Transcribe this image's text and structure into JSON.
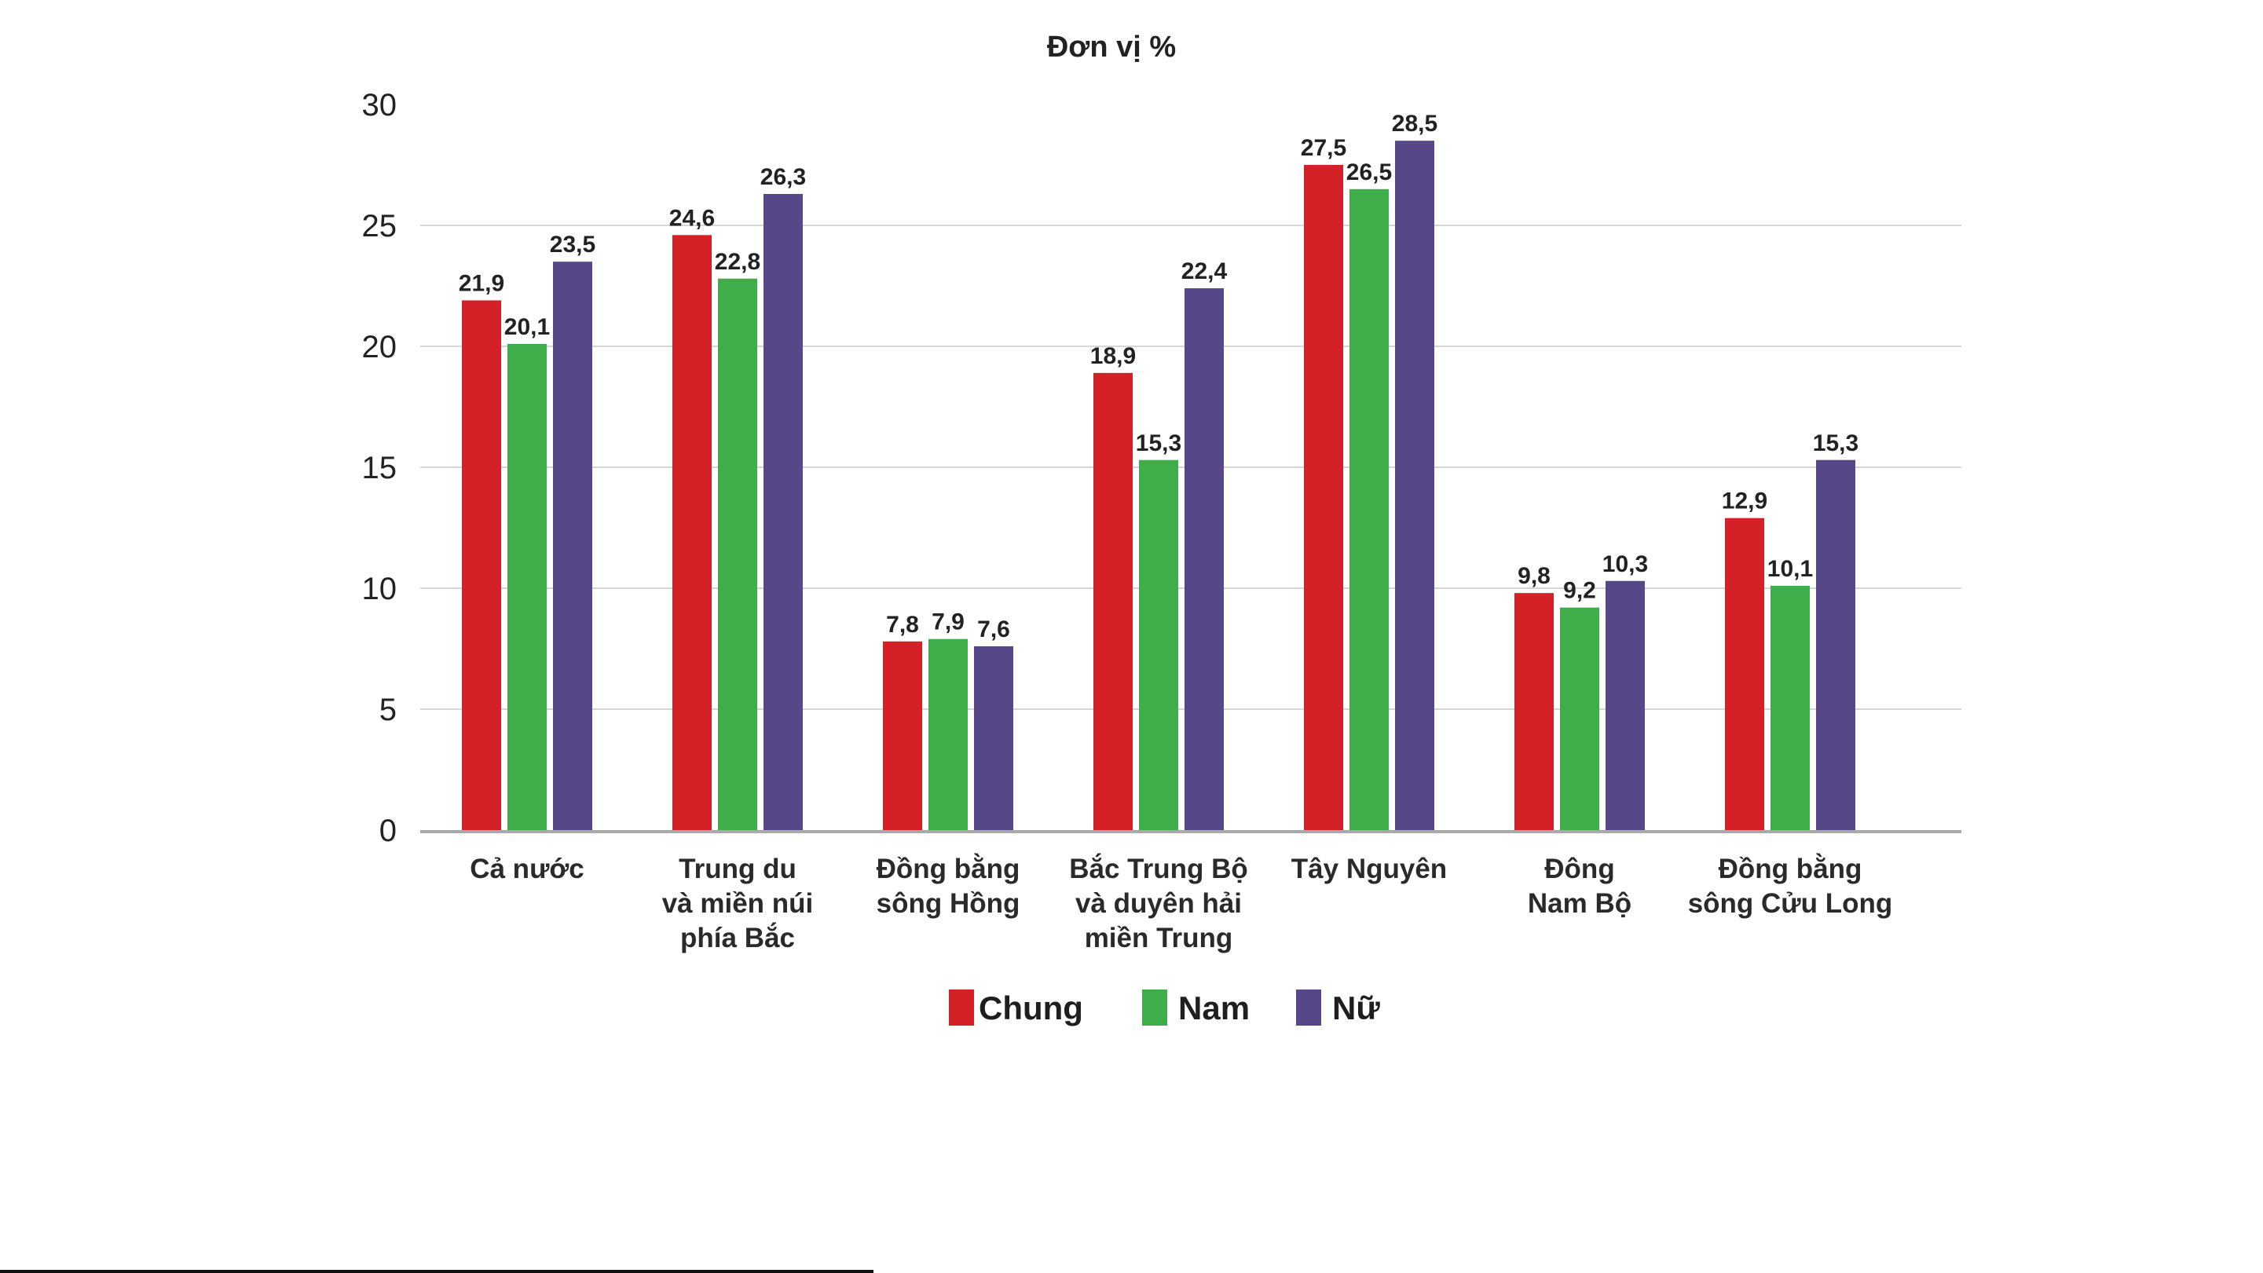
{
  "chart_data": {
    "type": "bar",
    "title": "Đơn vị %",
    "xlabel": "",
    "ylabel": "",
    "ylim": [
      0,
      30
    ],
    "yticks": [
      "0",
      "5",
      "10",
      "15",
      "20",
      "25",
      "30"
    ],
    "ytick_values": [
      0,
      5,
      10,
      15,
      20,
      25,
      30
    ],
    "grid": true,
    "legend_position": "bottom-center",
    "categories": [
      [
        "Cả nước"
      ],
      [
        "Trung du",
        "và miền núi",
        "phía Bắc"
      ],
      [
        "Đồng bằng",
        "sông Hồng"
      ],
      [
        "Bắc Trung Bộ",
        "và duyên hải",
        "miền Trung"
      ],
      [
        "Tây Nguyên"
      ],
      [
        "Đông",
        "Nam Bộ"
      ],
      [
        "Đồng bằng",
        "sông Cửu Long"
      ]
    ],
    "series": [
      {
        "name": "Chung",
        "color": "#d42128",
        "values": [
          21.9,
          24.6,
          7.8,
          18.9,
          27.5,
          9.8,
          12.9
        ],
        "labels": [
          "21,9",
          "24,6",
          "7,8",
          "18,9",
          "27,5",
          "9,8",
          "12,9"
        ]
      },
      {
        "name": "Nam",
        "color": "#3fae4a",
        "values": [
          20.1,
          22.8,
          7.9,
          15.3,
          26.5,
          9.2,
          10.1
        ],
        "labels": [
          "20,1",
          "22,8",
          "7,9",
          "15,3",
          "26,5",
          "9,2",
          "10,1"
        ]
      },
      {
        "name": "Nữ",
        "color": "#574788",
        "values": [
          23.5,
          26.3,
          7.6,
          22.4,
          28.5,
          10.3,
          15.3
        ],
        "labels": [
          "23,5",
          "26,3",
          "7,6",
          "22,4",
          "28,5",
          "10,3",
          "15,3"
        ]
      }
    ]
  }
}
